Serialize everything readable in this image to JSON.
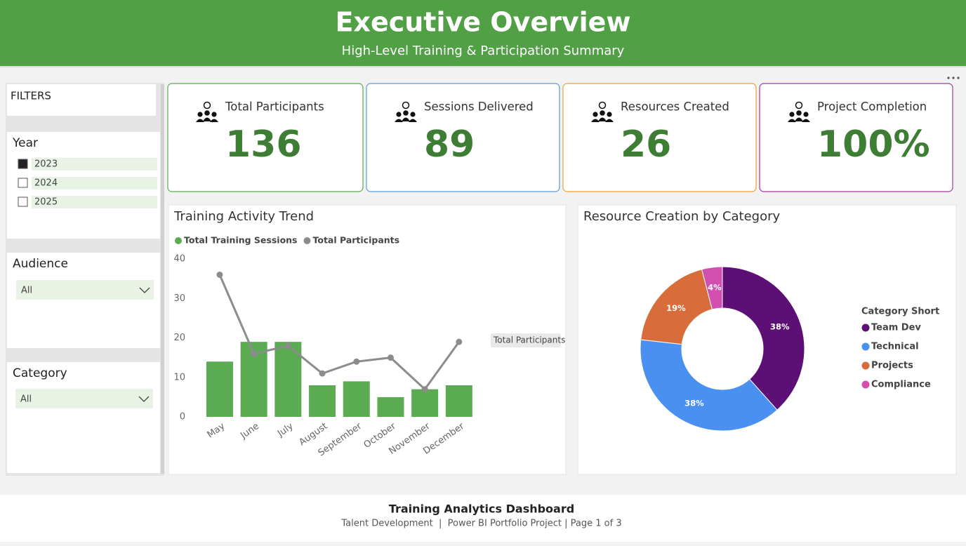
{
  "header": {
    "title": "Executive Overview",
    "subtitle": "High-Level Training & Participation Summary"
  },
  "filters": {
    "title": "FILTERS",
    "year": {
      "label": "Year",
      "items": [
        {
          "label": "2023",
          "checked": true
        },
        {
          "label": "2024",
          "checked": false
        },
        {
          "label": "2025",
          "checked": false
        }
      ]
    },
    "audience": {
      "label": "Audience",
      "value": "All"
    },
    "category": {
      "label": "Category",
      "value": "All"
    }
  },
  "kpis": [
    {
      "label": "Total Participants",
      "value": 136,
      "color": "#5aab52"
    },
    {
      "label": "Sessions Delivered",
      "value": 89,
      "color": "#5b9bd5"
    },
    {
      "label": "Resources Created",
      "value": 26,
      "color": "#f0a030"
    },
    {
      "label": "Project Completion",
      "value": "100%",
      "color": "#a03aa0"
    }
  ],
  "chart_data": [
    {
      "type": "combo",
      "title": "Training Activity Trend",
      "categories": [
        "May",
        "June",
        "July",
        "August",
        "September",
        "October",
        "November",
        "December"
      ],
      "series": [
        {
          "name": "Total Training Sessions",
          "type": "bar",
          "color": "#5aab52",
          "values": [
            14,
            19,
            19,
            8,
            9,
            5,
            7,
            8
          ]
        },
        {
          "name": "Total Participants",
          "type": "line",
          "color": "#8c8c8c",
          "values": [
            36,
            16,
            18,
            11,
            14,
            15,
            7,
            19
          ]
        }
      ],
      "ylim": [
        0,
        40
      ],
      "yticks": [
        0,
        10,
        20,
        30,
        40
      ],
      "grid": false
    },
    {
      "type": "pie",
      "title": "Resource Creation by Category",
      "legend_title": "Category Short",
      "categories": [
        "Team Dev",
        "Technical",
        "Projects",
        "Compliance"
      ],
      "values": [
        38,
        38,
        19,
        4
      ],
      "value_labels": [
        "38%",
        "38%",
        "19%",
        "4%"
      ],
      "colors": [
        "#5c0f74",
        "#4a90f0",
        "#d86c3a",
        "#d24faf"
      ]
    }
  ],
  "footer": {
    "title": "Training Analytics Dashboard",
    "subtitle": "Talent Development  |  Power BI Portfolio Project | Page 1 of 3"
  }
}
